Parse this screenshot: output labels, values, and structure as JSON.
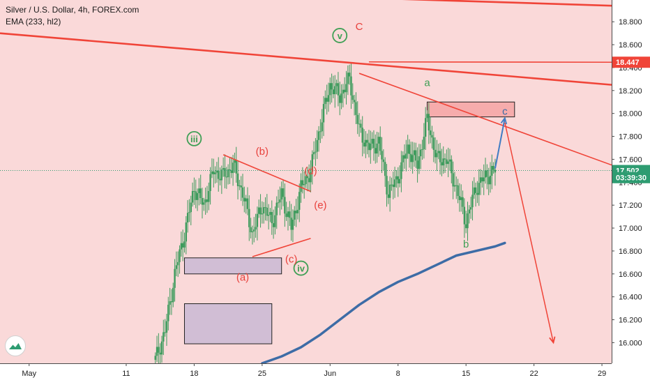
{
  "header": {
    "symbol_line": "Silver / U.S. Dollar, 4h, FOREX.com",
    "indicator_line": "EMA (233, hl2)"
  },
  "logo": {
    "icon": "tradingview-logo-icon"
  },
  "colors": {
    "background": "#fad9d9",
    "axis_bg": "#ffffff",
    "candle": "#3d9b5c",
    "red_line": "#f04438",
    "ema": "#3d6ca6",
    "blue_arrow": "#3f7cc4",
    "box_purple": "#c9b9d3",
    "box_pink": "#f5a3a3",
    "label_red": "#e8413c",
    "label_green": "#3f9f55",
    "price_dotted": "#2e9c71",
    "text": "#1a1a1a"
  },
  "chart_data": {
    "type": "line",
    "title": "Silver / U.S. Dollar, 4h, FOREX.com",
    "x_ticks": [
      "May",
      "11",
      "18",
      "25",
      "Jun",
      "8",
      "15",
      "22",
      "29"
    ],
    "y_ticks": [
      "16.000",
      "16.200",
      "16.400",
      "16.600",
      "16.800",
      "17.000",
      "17.200",
      "17.400",
      "17.600",
      "17.800",
      "18.000",
      "18.200",
      "18.400",
      "18.600",
      "18.800"
    ],
    "ylim": [
      15.82,
      18.99
    ],
    "xlim": [
      "2020-04-28",
      "2020-06-30"
    ],
    "price_labels": [
      {
        "value": 18.447,
        "text": "18.447",
        "color": "#f04438"
      },
      {
        "value": 17.502,
        "text": "17.502",
        "color": "#2e9c71"
      },
      {
        "value": 17.44,
        "text": "03:39:30",
        "color": "#2e9c71"
      }
    ],
    "series": [
      {
        "name": "Silver / U.S. Dollar",
        "kind": "close",
        "points": [
          [
            "2020-05-14",
            15.85
          ],
          [
            "2020-05-15",
            16.1
          ],
          [
            "2020-05-16",
            16.6
          ],
          [
            "2020-05-17",
            16.95
          ],
          [
            "2020-05-18",
            17.35
          ],
          [
            "2020-05-19",
            17.2
          ],
          [
            "2020-05-20",
            17.5
          ],
          [
            "2020-05-21",
            17.45
          ],
          [
            "2020-05-22",
            17.55
          ],
          [
            "2020-05-23",
            17.3
          ],
          [
            "2020-05-24",
            16.95
          ],
          [
            "2020-05-25",
            17.2
          ],
          [
            "2020-05-26",
            17.05
          ],
          [
            "2020-05-27",
            17.3
          ],
          [
            "2020-05-28",
            17.0
          ],
          [
            "2020-05-29",
            17.35
          ],
          [
            "2020-05-30",
            17.5
          ],
          [
            "2020-05-31",
            17.9
          ],
          [
            "2020-06-01",
            18.25
          ],
          [
            "2020-06-02",
            18.15
          ],
          [
            "2020-06-03",
            18.3
          ],
          [
            "2020-06-04",
            17.85
          ],
          [
            "2020-06-05",
            17.7
          ],
          [
            "2020-06-06",
            17.75
          ],
          [
            "2020-06-07",
            17.3
          ],
          [
            "2020-06-08",
            17.45
          ],
          [
            "2020-06-09",
            17.7
          ],
          [
            "2020-06-10",
            17.55
          ],
          [
            "2020-06-11",
            17.95
          ],
          [
            "2020-06-12",
            17.6
          ],
          [
            "2020-06-13",
            17.6
          ],
          [
            "2020-06-14",
            17.35
          ],
          [
            "2020-06-15",
            17.05
          ],
          [
            "2020-06-16",
            17.35
          ],
          [
            "2020-06-17",
            17.45
          ],
          [
            "2020-06-18",
            17.5
          ]
        ]
      },
      {
        "name": "EMA (233, hl2)",
        "kind": "ema",
        "points": [
          [
            "2020-05-25",
            15.82
          ],
          [
            "2020-05-27",
            15.88
          ],
          [
            "2020-05-29",
            15.96
          ],
          [
            "2020-05-31",
            16.07
          ],
          [
            "2020-06-02",
            16.2
          ],
          [
            "2020-06-04",
            16.33
          ],
          [
            "2020-06-06",
            16.44
          ],
          [
            "2020-06-08",
            16.53
          ],
          [
            "2020-06-10",
            16.6
          ],
          [
            "2020-06-12",
            16.68
          ],
          [
            "2020-06-14",
            16.76
          ],
          [
            "2020-06-16",
            16.8
          ],
          [
            "2020-06-18",
            16.84
          ],
          [
            "2020-06-19",
            16.87
          ]
        ]
      }
    ],
    "trend_lines": [
      {
        "from": [
          "2020-05-20",
          19.05
        ],
        "to": [
          "2020-06-30",
          18.94
        ],
        "color": "#f04438",
        "width": "thick"
      },
      {
        "from": [
          "2020-04-28",
          18.7
        ],
        "to": [
          "2020-06-30",
          18.25
        ],
        "color": "#f04438",
        "width": "thick"
      },
      {
        "from": [
          "2020-06-05",
          18.45
        ],
        "to": [
          "2020-06-30",
          18.447
        ],
        "color": "#f04438",
        "width": "thin"
      },
      {
        "from": [
          "2020-06-04",
          18.35
        ],
        "to": [
          "2020-06-30",
          17.55
        ],
        "color": "#f04438",
        "width": "thin"
      },
      {
        "from": [
          "2020-05-21",
          17.64
        ],
        "to": [
          "2020-05-30",
          17.32
        ],
        "color": "#f04438",
        "width": "thin"
      },
      {
        "from": [
          "2020-05-24",
          16.75
        ],
        "to": [
          "2020-05-30",
          16.91
        ],
        "color": "#f04438",
        "width": "thin"
      }
    ],
    "projection_arrows": [
      {
        "from": [
          "2020-06-18",
          17.52
        ],
        "to": [
          "2020-06-19",
          17.96
        ],
        "color": "#3f7cc4"
      },
      {
        "from": [
          "2020-06-19",
          17.92
        ],
        "to": [
          "2020-06-24",
          16.0
        ],
        "color": "#f04438"
      }
    ],
    "zones": [
      {
        "from": [
          "2020-05-17",
          16.34
        ],
        "to": [
          "2020-05-26",
          15.99
        ],
        "color": "#c9b9d3"
      },
      {
        "from": [
          "2020-05-17",
          16.74
        ],
        "to": [
          "2020-05-27",
          16.6
        ],
        "color": "#c9b9d3"
      },
      {
        "from": [
          "2020-06-11",
          18.1
        ],
        "to": [
          "2020-06-20",
          17.97
        ],
        "color": "#f5a3a3"
      }
    ],
    "annotations": [
      {
        "text": "C",
        "x": "2020-06-04",
        "y": 18.76,
        "color": "#e8413c",
        "circled": false
      },
      {
        "text": "v",
        "x": "2020-06-02",
        "y": 18.68,
        "color": "#3f9f55",
        "circled": true
      },
      {
        "text": "a",
        "x": "2020-06-11",
        "y": 18.27,
        "color": "#3f9f55",
        "circled": false
      },
      {
        "text": "c",
        "x": "2020-06-19",
        "y": 18.02,
        "color": "#3d6ca6",
        "circled": false
      },
      {
        "text": "b",
        "x": "2020-06-15",
        "y": 16.86,
        "color": "#3f9f55",
        "circled": false
      },
      {
        "text": "iii",
        "x": "2020-05-18",
        "y": 17.78,
        "color": "#3f9f55",
        "circled": true
      },
      {
        "text": "iv",
        "x": "2020-05-29",
        "y": 16.65,
        "color": "#3f9f55",
        "circled": true
      },
      {
        "text": "(b)",
        "x": "2020-05-25",
        "y": 17.67,
        "color": "#e8413c",
        "circled": false
      },
      {
        "text": "(d)",
        "x": "2020-05-30",
        "y": 17.5,
        "color": "#e8413c",
        "circled": false
      },
      {
        "text": "(e)",
        "x": "2020-05-31",
        "y": 17.2,
        "color": "#e8413c",
        "circled": false
      },
      {
        "text": "(c)",
        "x": "2020-05-28",
        "y": 16.73,
        "color": "#e8413c",
        "circled": false
      },
      {
        "text": "(a)",
        "x": "2020-05-23",
        "y": 16.57,
        "color": "#e8413c",
        "circled": false
      }
    ]
  }
}
